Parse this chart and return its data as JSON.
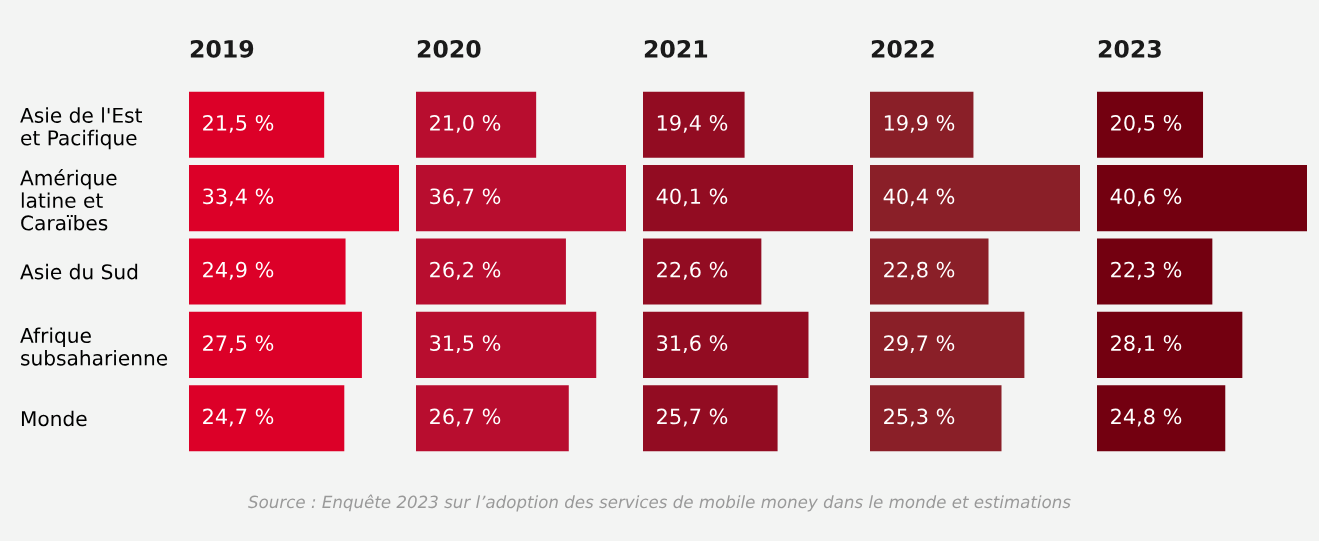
{
  "chart_data": [
    {
      "type": "bar",
      "orientation": "horizontal",
      "title": "2019",
      "categories": [
        "Asie de l'Est\net Pacifique",
        "Amérique\nlatine et\nCaraïbes",
        "Asie du Sud",
        "Afrique\nsubsaharienne",
        "Monde"
      ],
      "values": [
        21.5,
        33.4,
        24.9,
        27.5,
        24.7
      ],
      "color": "#dc0028",
      "value_labels": [
        "21,5 %",
        "33,4 %",
        "24,9 %",
        "27,5 %",
        "24,7 %"
      ],
      "tick_labels": "y",
      "annotations": [
        "Source : Enquête 2023 sur l’adoption des services de mobile money dans le monde et estimations"
      ]
    },
    {
      "type": "bar",
      "orientation": "horizontal",
      "title": "2020",
      "categories": [
        null,
        null,
        null,
        null,
        null
      ],
      "values": [
        21.0,
        36.7,
        26.2,
        31.5,
        26.7
      ],
      "color": "#b80d2f",
      "value_labels": [
        "21,0 %",
        "36,7 %",
        "26,2 %",
        "31,5 %",
        "26,7 %"
      ],
      "tick_labels": false
    },
    {
      "type": "bar",
      "orientation": "horizontal",
      "title": "2021",
      "categories": [
        null,
        null,
        null,
        null,
        null
      ],
      "values": [
        19.4,
        40.1,
        22.6,
        31.6,
        25.7
      ],
      "color": "#920c22",
      "value_labels": [
        "19,4 %",
        "40,1 %",
        "22,6 %",
        "31,6 %",
        "25,7 %"
      ],
      "tick_labels": false
    },
    {
      "type": "bar",
      "orientation": "horizontal",
      "title": "2022",
      "categories": [
        null,
        null,
        null,
        null,
        null
      ],
      "values": [
        19.9,
        40.4,
        22.8,
        29.7,
        25.3
      ],
      "color": "#8a1f28",
      "value_labels": [
        "19,9 %",
        "40,4 %",
        "22,8 %",
        "29,7 %",
        "25,3 %"
      ],
      "tick_labels": false
    },
    {
      "type": "bar",
      "orientation": "horizontal",
      "title": "2023",
      "categories": [
        null,
        null,
        null,
        null,
        null
      ],
      "values": [
        20.5,
        40.6,
        22.3,
        28.1,
        24.8
      ],
      "color": "#730010",
      "value_labels": [
        "20,5 %",
        "40,6 %",
        "22,3 %",
        "28,1 %",
        "24,8 %"
      ],
      "tick_labels": false
    }
  ]
}
